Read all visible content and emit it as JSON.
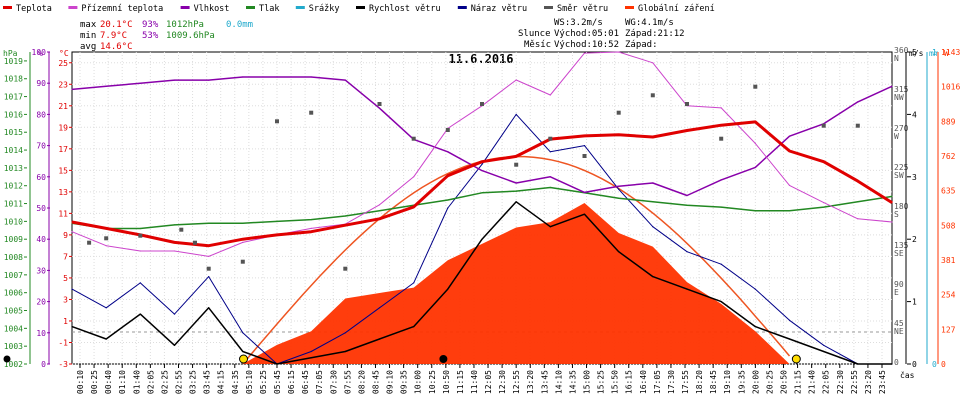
{
  "legend": [
    {
      "label": "Teplota",
      "color": "#e00000"
    },
    {
      "label": "Přízemní teplota",
      "color": "#cc44cc"
    },
    {
      "label": "Vlhkost",
      "color": "#8800aa"
    },
    {
      "label": "Tlak",
      "color": "#228822"
    },
    {
      "label": "Srážky",
      "color": "#22aacc"
    },
    {
      "label": "Rychlost větru",
      "color": "#000000"
    },
    {
      "label": "Náraz větru",
      "color": "#000088"
    },
    {
      "label": "Směr větru",
      "color": "#555555"
    },
    {
      "label": "Globální záření",
      "color": "#ff3300"
    }
  ],
  "stats": {
    "max_label": "max",
    "max_temp": "20.1°C",
    "max_hum": "93%",
    "max_press": "1012hPa",
    "rain": "0.0mm",
    "min_label": "min",
    "min_temp": "7.9°C",
    "min_hum": "53%",
    "min_press": "1009.6hPa",
    "avg_label": "avg",
    "avg_temp": "14.6°C"
  },
  "wind_info": {
    "ws": "WS:3.2m/s",
    "wg": "WG:4.1m/s",
    "sun_label": "Slunce",
    "sun_rise": "Východ:05:01",
    "sun_set": "Západ:21:12",
    "moon_label": "Měsíc",
    "moon_rise": "Východ:10:52",
    "moon_set": "Západ:"
  },
  "chart_data": {
    "type": "line",
    "title": "11.6.2016",
    "x_unit": "čas",
    "x_ticks": [
      "00:10",
      "00:25",
      "00:40",
      "01:10",
      "01:40",
      "02:05",
      "02:25",
      "02:55",
      "03:25",
      "03:45",
      "04:15",
      "04:35",
      "05:10",
      "05:25",
      "05:45",
      "06:15",
      "06:45",
      "07:05",
      "07:30",
      "07:55",
      "08:20",
      "08:45",
      "09:10",
      "09:35",
      "10:00",
      "10:25",
      "10:50",
      "11:15",
      "11:40",
      "12:05",
      "12:30",
      "12:55",
      "13:20",
      "13:45",
      "14:10",
      "14:35",
      "15:00",
      "15:25",
      "15:50",
      "16:15",
      "16:40",
      "17:05",
      "17:30",
      "17:55",
      "18:20",
      "18:45",
      "19:10",
      "19:35",
      "20:00",
      "20:25",
      "20:50",
      "21:15",
      "21:40",
      "22:05",
      "22:30",
      "22:55",
      "23:20",
      "23:45"
    ],
    "axes": {
      "hpa": {
        "label": "hPa",
        "ticks": [
          "1019",
          "1018",
          "1017",
          "1016",
          "1015",
          "1014",
          "1013",
          "1012",
          "1011",
          "1010",
          "1009",
          "1008",
          "1007",
          "1006",
          "1005",
          "1004",
          "1003",
          "1002"
        ],
        "range": [
          1002,
          1019.5
        ]
      },
      "percent": {
        "label": "%",
        "ticks": [
          "100",
          "90",
          "80",
          "70",
          "60",
          "50",
          "40",
          "30",
          "20",
          "10",
          "0"
        ],
        "range": [
          0,
          100
        ]
      },
      "celsius": {
        "label": "°C",
        "ticks": [
          "25",
          "23",
          "21",
          "19",
          "17",
          "15",
          "13",
          "11",
          "9",
          "7",
          "5",
          "3",
          "1",
          "-1",
          "-3"
        ],
        "range": [
          -3,
          26
        ]
      },
      "direction": {
        "ticks": [
          "360 N",
          "315 NW",
          "270 W",
          "225 SW",
          "180 S",
          "135 SE",
          "90 E",
          "45 NE",
          "0"
        ],
        "range": [
          0,
          360
        ]
      },
      "speed": {
        "label": "m/s",
        "ticks": [
          "5",
          "4",
          "3",
          "2",
          "1",
          "0"
        ],
        "range": [
          0,
          5
        ]
      },
      "rain": {
        "label": "mm",
        "ticks": [
          "1",
          "0"
        ],
        "range": [
          0,
          1
        ]
      },
      "radiation": {
        "label": "W",
        "ticks": [
          "1143",
          "1016",
          "889",
          "762",
          "635",
          "508",
          "381",
          "254",
          "127",
          "0"
        ],
        "range": [
          0,
          1143
        ]
      }
    },
    "series": [
      {
        "name": "Teplota",
        "unit": "°C",
        "x": [
          0,
          1,
          2,
          3,
          4,
          5,
          6,
          7,
          8,
          9,
          10,
          11,
          12,
          13,
          14,
          15,
          16,
          17,
          18,
          19,
          20,
          21,
          22,
          23,
          24
        ],
        "y": [
          10.2,
          9.6,
          9.0,
          8.3,
          8.0,
          8.6,
          9.0,
          9.3,
          9.9,
          10.5,
          11.6,
          14.5,
          15.8,
          16.3,
          17.9,
          18.2,
          18.3,
          18.1,
          18.7,
          19.2,
          19.5,
          16.8,
          15.8,
          14.0,
          12.0
        ]
      },
      {
        "name": "Přízemní teplota",
        "unit": "°C",
        "x": [
          0,
          1,
          2,
          3,
          4,
          5,
          6,
          7,
          8,
          9,
          10,
          11,
          12,
          13,
          14,
          15,
          16,
          17,
          18,
          19,
          20,
          21,
          22,
          23,
          24
        ],
        "y": [
          9.3,
          8.0,
          7.5,
          7.5,
          7.0,
          8.3,
          9.0,
          9.6,
          10.0,
          11.8,
          14.4,
          18.9,
          21.0,
          23.4,
          22.0,
          25.9,
          26.0,
          25.0,
          21.0,
          20.8,
          17.5,
          13.6,
          12.0,
          10.5,
          10.2
        ]
      },
      {
        "name": "Vlhkost",
        "unit": "%",
        "x": [
          0,
          1,
          2,
          3,
          4,
          5,
          6,
          7,
          8,
          9,
          10,
          11,
          12,
          13,
          14,
          15,
          16,
          17,
          18,
          19,
          20,
          21,
          22,
          23,
          24
        ],
        "y": [
          88,
          89,
          90,
          91,
          91,
          92,
          92,
          92,
          91,
          82,
          72,
          68,
          62,
          58,
          60,
          55,
          57,
          58,
          54,
          59,
          63,
          73,
          77,
          84,
          89
        ]
      },
      {
        "name": "Tlak",
        "unit": "hPa",
        "x": [
          0,
          1,
          2,
          3,
          4,
          5,
          6,
          7,
          8,
          9,
          10,
          11,
          12,
          13,
          14,
          15,
          16,
          17,
          18,
          19,
          20,
          21,
          22,
          23,
          24
        ],
        "y": [
          1009.9,
          1009.6,
          1009.6,
          1009.8,
          1009.9,
          1009.9,
          1010.0,
          1010.1,
          1010.3,
          1010.6,
          1010.9,
          1011.2,
          1011.6,
          1011.7,
          1011.9,
          1011.6,
          1011.3,
          1011.1,
          1010.9,
          1010.8,
          1010.6,
          1010.6,
          1010.8,
          1011.1,
          1011.4
        ]
      },
      {
        "name": "Rychlost větru",
        "unit": "m/s",
        "x": [
          0,
          1,
          2,
          3,
          4,
          5,
          6,
          7,
          8,
          9,
          10,
          11,
          12,
          13,
          14,
          15,
          16,
          17,
          18,
          19,
          20,
          21,
          22,
          23,
          24
        ],
        "y": [
          0.6,
          0.4,
          0.8,
          0.3,
          0.9,
          0.2,
          0.0,
          0.1,
          0.2,
          0.4,
          0.6,
          1.2,
          2.0,
          2.6,
          2.2,
          2.4,
          1.8,
          1.4,
          1.2,
          1.0,
          0.6,
          0.4,
          0.2,
          0.0,
          0.0
        ]
      },
      {
        "name": "Náraz větru",
        "unit": "m/s",
        "x": [
          0,
          1,
          2,
          3,
          4,
          5,
          6,
          7,
          8,
          9,
          10,
          11,
          12,
          13,
          14,
          15,
          16,
          17,
          18,
          19,
          20,
          21,
          22,
          23,
          24
        ],
        "y": [
          1.2,
          0.9,
          1.3,
          0.8,
          1.4,
          0.5,
          0.0,
          0.2,
          0.5,
          0.9,
          1.3,
          2.5,
          3.2,
          4.0,
          3.4,
          3.5,
          2.8,
          2.2,
          1.8,
          1.6,
          1.2,
          0.7,
          0.3,
          0.0,
          0.0
        ]
      },
      {
        "name": "Globální záření",
        "unit": "W",
        "x": [
          5,
          6,
          7,
          8,
          9,
          10,
          11,
          12,
          13,
          14,
          15,
          16,
          17,
          18,
          19,
          20,
          21
        ],
        "y": [
          0,
          70,
          120,
          240,
          260,
          280,
          380,
          440,
          500,
          520,
          590,
          480,
          430,
          300,
          220,
          120,
          0
        ]
      },
      {
        "name": "Směr větru",
        "unit": "°",
        "x": [
          0.5,
          1,
          2,
          3.2,
          3.6,
          4,
          5,
          6,
          7,
          8,
          9,
          10,
          11,
          12,
          13,
          14,
          15,
          16,
          17,
          18,
          19,
          20,
          22,
          23
        ],
        "y": [
          140,
          145,
          148,
          155,
          140,
          110,
          118,
          280,
          290,
          110,
          300,
          260,
          270,
          300,
          230,
          260,
          240,
          290,
          310,
          300,
          260,
          320,
          275,
          275
        ]
      }
    ]
  }
}
